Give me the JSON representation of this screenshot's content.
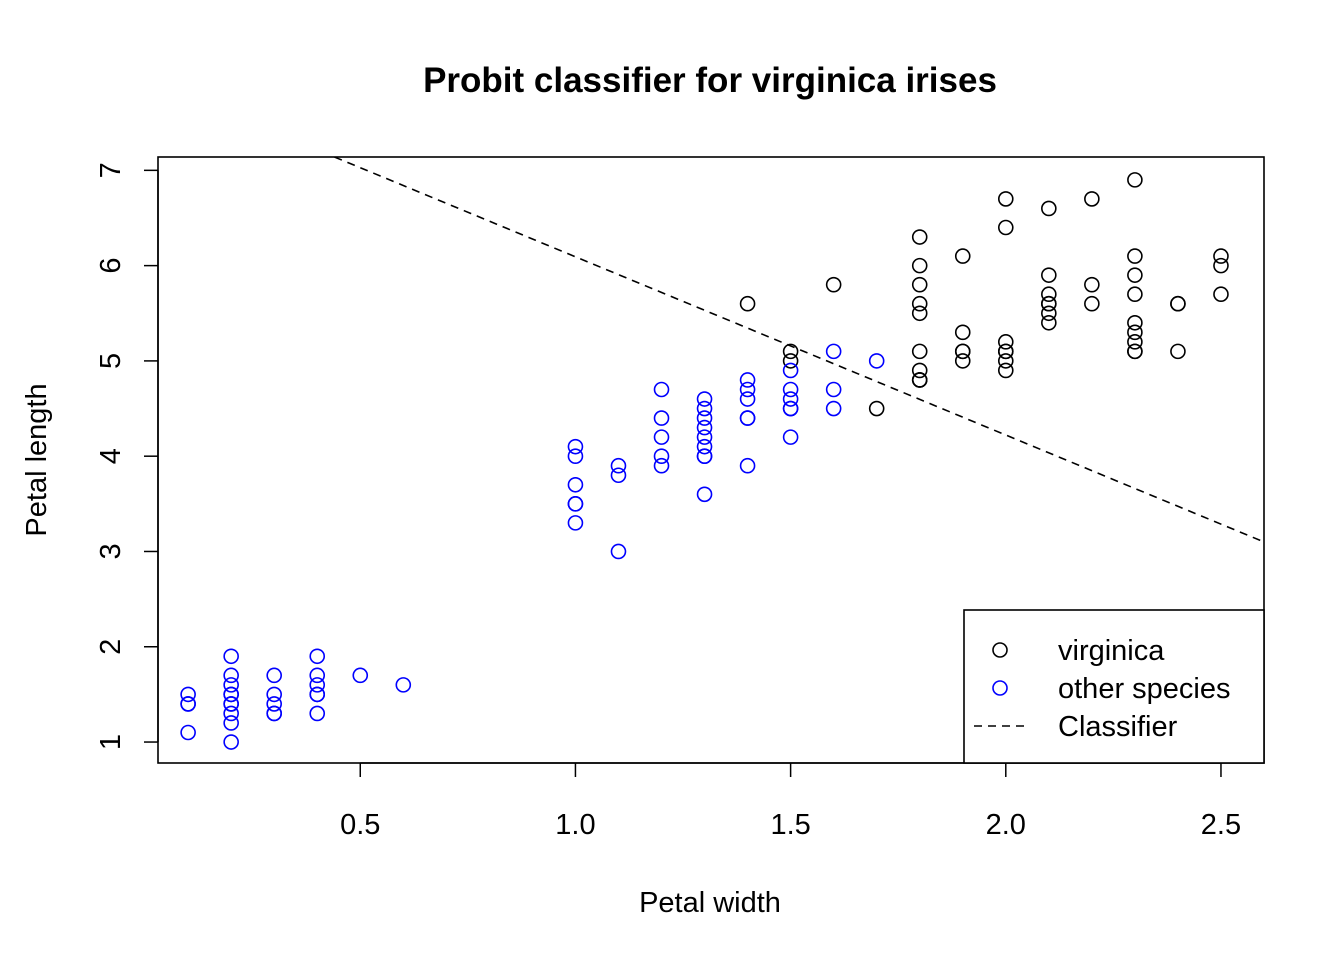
{
  "chart_data": {
    "type": "scatter",
    "title": "Probit classifier for virginica irises",
    "xlabel": "Petal width",
    "ylabel": "Petal length",
    "xlim": [
      0.03,
      2.6
    ],
    "ylim": [
      0.78,
      7.14
    ],
    "xticks": [
      0.5,
      1.0,
      1.5,
      2.0,
      2.5
    ],
    "xtick_labels": [
      "0.5",
      "1.0",
      "1.5",
      "2.0",
      "2.5"
    ],
    "yticks": [
      1,
      2,
      3,
      4,
      5,
      6,
      7
    ],
    "ytick_labels": [
      "1",
      "2",
      "3",
      "4",
      "5",
      "6",
      "7"
    ],
    "legend_position": "bottom-right",
    "series": [
      {
        "name": "virginica",
        "color": "#000000",
        "marker": "open-circle",
        "x": [
          1.4,
          1.5,
          1.5,
          1.6,
          1.7,
          1.8,
          1.8,
          1.8,
          1.8,
          1.8,
          1.8,
          1.8,
          1.8,
          1.8,
          1.8,
          1.9,
          1.9,
          1.9,
          1.9,
          1.9,
          2.0,
          2.0,
          2.0,
          2.0,
          2.0,
          2.0,
          2.0,
          2.1,
          2.1,
          2.1,
          2.1,
          2.1,
          2.1,
          2.1,
          2.2,
          2.2,
          2.2,
          2.3,
          2.3,
          2.3,
          2.3,
          2.3,
          2.3,
          2.3,
          2.3,
          2.3,
          2.4,
          2.4,
          2.4,
          2.5,
          2.5,
          2.5
        ],
        "y": [
          5.6,
          5.1,
          5.0,
          5.8,
          4.5,
          6.3,
          6.0,
          5.8,
          5.6,
          5.5,
          5.1,
          4.9,
          4.8,
          4.8,
          4.8,
          6.1,
          5.3,
          5.1,
          5.0,
          5.1,
          6.7,
          6.4,
          5.2,
          5.1,
          5.0,
          4.9,
          5.1,
          6.6,
          5.9,
          5.7,
          5.6,
          5.5,
          5.4,
          5.6,
          6.7,
          5.8,
          5.6,
          6.9,
          6.1,
          5.9,
          5.7,
          5.4,
          5.3,
          5.2,
          5.1,
          5.1,
          5.6,
          5.6,
          5.1,
          6.1,
          6.0,
          5.7
        ]
      },
      {
        "name": "other species",
        "color": "#0000ff",
        "marker": "open-circle",
        "x": [
          0.1,
          0.1,
          0.1,
          0.1,
          0.2,
          0.2,
          0.2,
          0.2,
          0.2,
          0.2,
          0.2,
          0.2,
          0.2,
          0.2,
          0.3,
          0.3,
          0.3,
          0.3,
          0.3,
          0.4,
          0.4,
          0.4,
          0.4,
          0.4,
          0.4,
          0.5,
          0.6,
          1.0,
          1.0,
          1.0,
          1.0,
          1.0,
          1.0,
          1.1,
          1.1,
          1.1,
          1.2,
          1.2,
          1.2,
          1.2,
          1.2,
          1.3,
          1.3,
          1.3,
          1.3,
          1.3,
          1.3,
          1.3,
          1.3,
          1.3,
          1.4,
          1.4,
          1.4,
          1.4,
          1.4,
          1.4,
          1.5,
          1.5,
          1.5,
          1.5,
          1.5,
          1.5,
          1.6,
          1.6,
          1.6,
          1.7
        ],
        "y": [
          1.5,
          1.4,
          1.4,
          1.1,
          1.9,
          1.7,
          1.6,
          1.5,
          1.5,
          1.4,
          1.4,
          1.3,
          1.2,
          1.0,
          1.7,
          1.5,
          1.4,
          1.3,
          1.3,
          1.9,
          1.7,
          1.6,
          1.5,
          1.5,
          1.3,
          1.7,
          1.6,
          4.1,
          4.0,
          3.7,
          3.5,
          3.5,
          3.3,
          3.9,
          3.8,
          3.0,
          4.7,
          4.4,
          4.2,
          4.0,
          3.9,
          4.6,
          4.5,
          4.4,
          4.3,
          4.2,
          4.1,
          4.0,
          4.0,
          3.6,
          4.8,
          4.7,
          4.6,
          4.4,
          4.4,
          3.9,
          4.9,
          4.7,
          4.6,
          4.5,
          4.5,
          4.2,
          5.1,
          4.7,
          4.5,
          5.0
        ]
      }
    ],
    "lines": [
      {
        "name": "Classifier",
        "color": "#000000",
        "style": "dashed",
        "x": [
          0.44,
          2.6
        ],
        "y": [
          7.14,
          3.1
        ]
      }
    ],
    "legend": [
      {
        "label": "virginica",
        "symbol": "circle",
        "color": "#000000"
      },
      {
        "label": "other species",
        "symbol": "circle",
        "color": "#0000ff"
      },
      {
        "label": "Classifier",
        "symbol": "dashed-line",
        "color": "#000000"
      }
    ]
  }
}
